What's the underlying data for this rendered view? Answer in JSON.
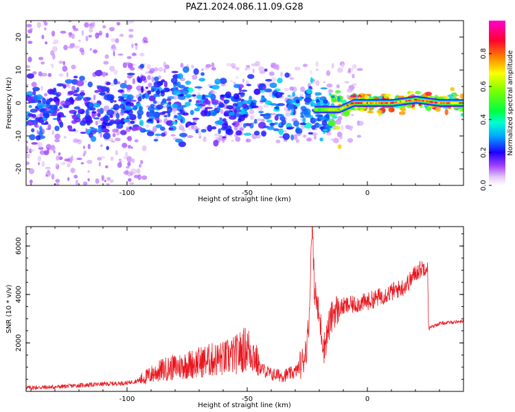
{
  "title": "PAZ1.2024.086.11.09.G28",
  "chart_data": [
    {
      "type": "heatmap",
      "xlabel": "Height of straight line (km)",
      "ylabel": "Frequency (Hz)",
      "xlim": [
        -142,
        40
      ],
      "ylim": [
        -25,
        25
      ],
      "x_ticks": [
        -100,
        -50,
        0
      ],
      "y_ticks": [
        -20,
        -10,
        0,
        10,
        20
      ],
      "colorbar": {
        "label": "Normalized spectral amplitude",
        "range": [
          0.0,
          1.0
        ],
        "ticks": [
          0.0,
          0.2,
          0.4,
          0.6,
          0.8
        ],
        "colors": [
          "#ffffff",
          "#d9a8f5",
          "#9b30ff",
          "#3a00ff",
          "#0000ff",
          "#00d8ff",
          "#00ff60",
          "#9cff00",
          "#ffe000",
          "#ff7000",
          "#ff0040",
          "#ff00c0"
        ]
      },
      "ridge": [
        {
          "x": -140,
          "f": -2,
          "amp": 0.3
        },
        {
          "x": -120,
          "f": -2,
          "amp": 0.3
        },
        {
          "x": -100,
          "f": -2,
          "amp": 0.3
        },
        {
          "x": -85,
          "f": 0,
          "amp": 0.35
        },
        {
          "x": -70,
          "f": 0,
          "amp": 0.35
        },
        {
          "x": -55,
          "f": -2,
          "amp": 0.3
        },
        {
          "x": -40,
          "f": 0,
          "amp": 0.4
        },
        {
          "x": -30,
          "f": -2,
          "amp": 0.45
        },
        {
          "x": -20,
          "f": -2,
          "amp": 0.55
        },
        {
          "x": -12,
          "f": -2,
          "amp": 0.7
        },
        {
          "x": -6,
          "f": 0,
          "amp": 0.85
        },
        {
          "x": 0,
          "f": 0,
          "amp": 0.8
        },
        {
          "x": 10,
          "f": 0,
          "amp": 0.8
        },
        {
          "x": 20,
          "f": 1,
          "amp": 0.85
        },
        {
          "x": 30,
          "f": 0,
          "amp": 0.8
        },
        {
          "x": 40,
          "f": 0,
          "amp": 0.7
        }
      ]
    },
    {
      "type": "line",
      "xlabel": "Height of straight line (km)",
      "ylabel": "SNR (10 * v/v)",
      "xlim": [
        -142,
        40
      ],
      "ylim": [
        0,
        6800
      ],
      "x_ticks": [
        -100,
        -50,
        0
      ],
      "y_ticks": [
        2000,
        4000,
        6000
      ],
      "color": "#e8161e",
      "series": [
        {
          "x": [
            -142,
            -130,
            -120,
            -110,
            -100,
            -95,
            -90,
            -85,
            -80,
            -75,
            -70,
            -65,
            -60,
            -55,
            -50,
            -47,
            -45,
            -40,
            -35,
            -30,
            -27,
            -25,
            -24,
            -23,
            -22,
            -20,
            -18,
            -16,
            -14,
            -12,
            -10,
            -5,
            0,
            5,
            10,
            15,
            18,
            20,
            23,
            25,
            25.5,
            30,
            35,
            40
          ],
          "y": [
            150,
            180,
            250,
            300,
            350,
            450,
            700,
            900,
            1000,
            1100,
            1200,
            1300,
            1350,
            1500,
            1800,
            1500,
            1000,
            700,
            650,
            800,
            1200,
            2000,
            3500,
            6500,
            4200,
            3000,
            1800,
            2700,
            3300,
            3400,
            3500,
            3600,
            3700,
            3900,
            4100,
            4300,
            4600,
            4900,
            5100,
            5200,
            2600,
            2800,
            2850,
            2900
          ]
        }
      ]
    }
  ]
}
